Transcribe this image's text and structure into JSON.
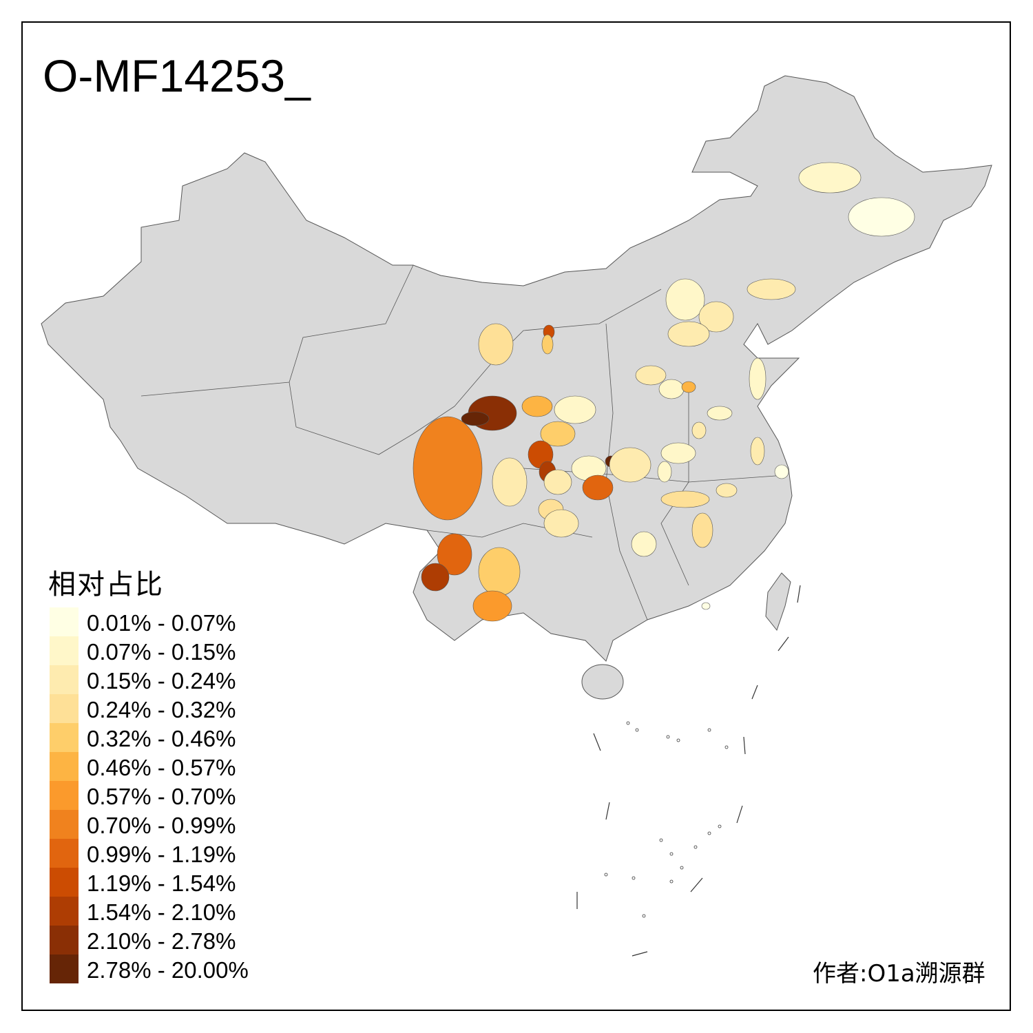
{
  "title": "O-MF14253_",
  "legend": {
    "title": "相对占比",
    "items": [
      {
        "label": "0.01% - 0.07%",
        "color": "#FFFFE4"
      },
      {
        "label": "0.07% - 0.15%",
        "color": "#FFF7C9"
      },
      {
        "label": "0.15% - 0.24%",
        "color": "#FEEBAF"
      },
      {
        "label": "0.24% - 0.32%",
        "color": "#FEE097"
      },
      {
        "label": "0.32% - 0.46%",
        "color": "#FECE6A"
      },
      {
        "label": "0.46% - 0.57%",
        "color": "#FDB443"
      },
      {
        "label": "0.57% - 0.70%",
        "color": "#FB9A2C"
      },
      {
        "label": "0.70% - 0.99%",
        "color": "#F0821E"
      },
      {
        "label": "0.99% - 1.19%",
        "color": "#E1650F"
      },
      {
        "label": "1.19% - 1.54%",
        "color": "#CC4C02"
      },
      {
        "label": "1.54% - 2.10%",
        "color": "#AE3D03"
      },
      {
        "label": "2.10% - 2.78%",
        "color": "#8A2F05"
      },
      {
        "label": "2.78% - 20.00%",
        "color": "#662506"
      }
    ]
  },
  "map": {
    "base_color": "#D9D9D9",
    "border_color": "#555555"
  },
  "author": "作者:O1a溯源群"
}
